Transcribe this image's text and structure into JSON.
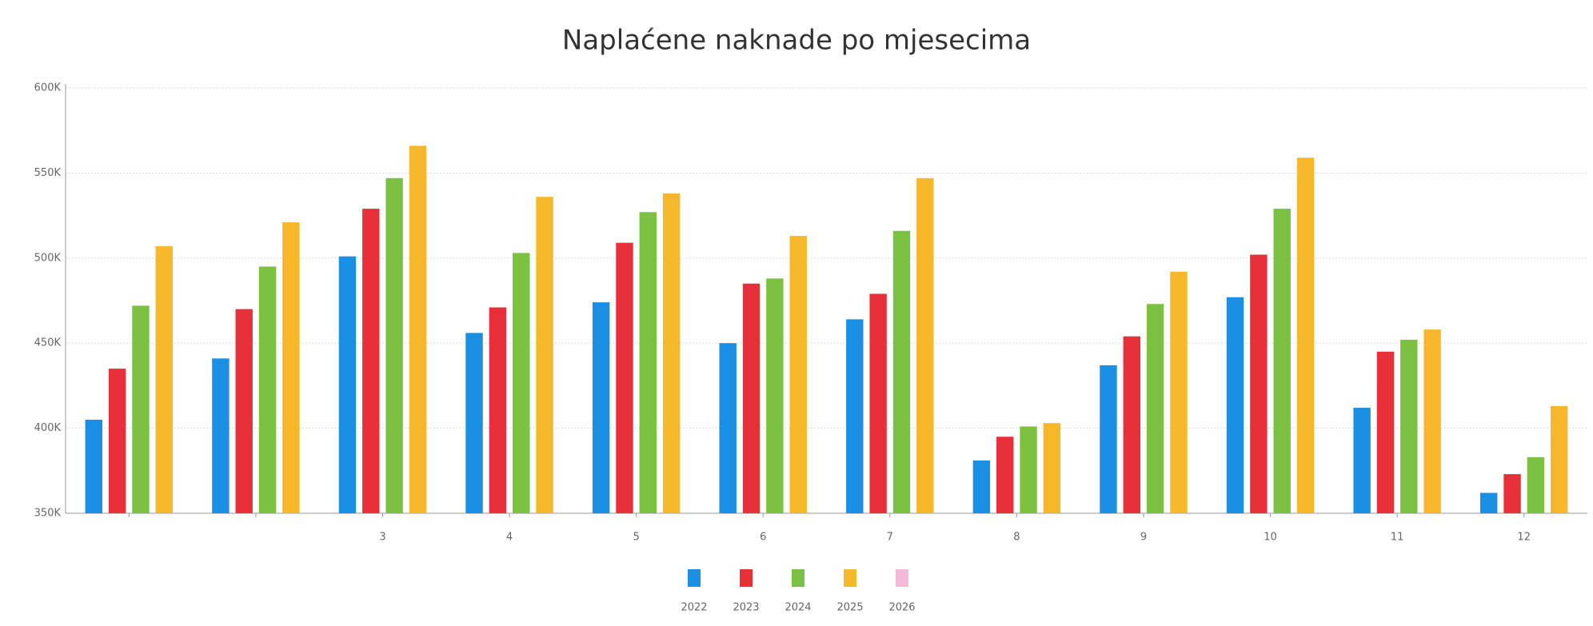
{
  "chart_data": {
    "type": "bar",
    "title": "Naplaćene naknade po mjesecima",
    "categories": [
      null,
      null,
      "3",
      "4",
      "5",
      "6",
      "7",
      "8",
      "9",
      "10",
      "11",
      "12"
    ],
    "series": [
      {
        "name": "2022",
        "color": "#1a8fe3",
        "values": [
          405000,
          441000,
          501000,
          456000,
          474000,
          450000,
          464000,
          381000,
          437000,
          477000,
          412000,
          362000
        ]
      },
      {
        "name": "2023",
        "color": "#e8303a",
        "values": [
          435000,
          470000,
          529000,
          471000,
          509000,
          485000,
          479000,
          395000,
          454000,
          502000,
          445000,
          373000
        ]
      },
      {
        "name": "2024",
        "color": "#7dc142",
        "values": [
          472000,
          495000,
          547000,
          503000,
          527000,
          488000,
          516000,
          401000,
          473000,
          529000,
          452000,
          383000
        ]
      },
      {
        "name": "2025",
        "color": "#f6b72a",
        "values": [
          507000,
          521000,
          566000,
          536000,
          538000,
          513000,
          547000,
          403000,
          492000,
          559000,
          458000,
          413000
        ]
      },
      {
        "name": "2026",
        "color": "#f4b8d8",
        "values": [
          null,
          null,
          null,
          null,
          null,
          null,
          null,
          null,
          null,
          null,
          null,
          null
        ]
      }
    ],
    "ylim": [
      350000,
      600000
    ],
    "yticks": [
      {
        "value": 350000,
        "label": "350K"
      },
      {
        "value": 400000,
        "label": "400K"
      },
      {
        "value": 450000,
        "label": "450K"
      },
      {
        "value": 500000,
        "label": "500K"
      },
      {
        "value": 550000,
        "label": "550K"
      },
      {
        "value": 600000,
        "label": "600K"
      }
    ],
    "grid": true
  }
}
